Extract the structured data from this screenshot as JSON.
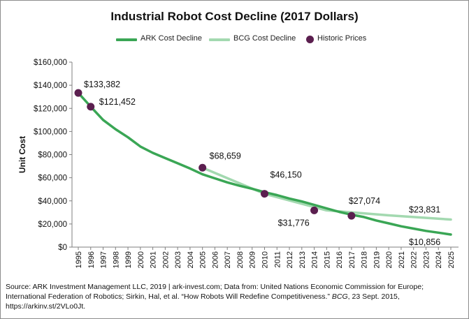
{
  "chart_data": {
    "type": "line",
    "title": "Industrial Robot Cost Decline (2017 Dollars)",
    "xlabel": "",
    "ylabel": "Unit Cost",
    "x": [
      1995,
      1996,
      1997,
      1998,
      1999,
      2000,
      2001,
      2002,
      2003,
      2004,
      2005,
      2006,
      2007,
      2008,
      2009,
      2010,
      2011,
      2012,
      2013,
      2014,
      2015,
      2016,
      2017,
      2018,
      2019,
      2020,
      2021,
      2022,
      2023,
      2024,
      2025
    ],
    "ylim": [
      0,
      160000
    ],
    "yticks": [
      "$0",
      "$20,000",
      "$40,000",
      "$60,000",
      "$80,000",
      "$100,000",
      "$120,000",
      "$140,000",
      "$160,000"
    ],
    "ytick_values": [
      0,
      20000,
      40000,
      60000,
      80000,
      100000,
      120000,
      140000,
      160000
    ],
    "grid": false,
    "legend_position": "top",
    "series": [
      {
        "name": "ARK Cost Decline",
        "color": "#3aa655",
        "x": [
          1995,
          1996,
          1997,
          1998,
          1999,
          2000,
          2001,
          2002,
          2003,
          2004,
          2005,
          2006,
          2007,
          2008,
          2009,
          2010,
          2011,
          2012,
          2013,
          2014,
          2015,
          2016,
          2017,
          2018,
          2019,
          2020,
          2021,
          2022,
          2023,
          2024,
          2025
        ],
        "values": [
          133382,
          121452,
          110000,
          102000,
          95000,
          87000,
          81500,
          77000,
          72500,
          68000,
          63000,
          59500,
          56000,
          53000,
          50500,
          47500,
          45000,
          42000,
          39500,
          36500,
          33500,
          30500,
          28000,
          26000,
          23000,
          20500,
          18000,
          16000,
          14000,
          12500,
          10856
        ]
      },
      {
        "name": "BCG Cost Decline",
        "color": "#a3d9b0",
        "x": [
          2005,
          2010,
          2015,
          2020,
          2025
        ],
        "values": [
          68659,
          46150,
          31776,
          27500,
          23831
        ]
      },
      {
        "name": "Historic Prices",
        "color": "#5b1f4f",
        "kind": "points",
        "x": [
          1995,
          1996,
          2005,
          2010,
          2014,
          2017
        ],
        "values": [
          133382,
          121452,
          68659,
          46150,
          31776,
          27074
        ]
      }
    ],
    "annotations": [
      {
        "text": "$133,382",
        "x": 1995,
        "y": 133382,
        "dx": 8,
        "dy": -8
      },
      {
        "text": "$121,452",
        "x": 1996,
        "y": 121452,
        "dx": 12,
        "dy": -3
      },
      {
        "text": "$68,659",
        "x": 2005,
        "y": 68659,
        "dx": 10,
        "dy": -13
      },
      {
        "text": "$46,150",
        "x": 2010,
        "y": 46150,
        "dx": 8,
        "dy": -23
      },
      {
        "text": "$31,776",
        "x": 2014,
        "y": 31776,
        "dx": -52,
        "dy": 22
      },
      {
        "text": "$27,074",
        "x": 2017,
        "y": 27074,
        "dx": -4,
        "dy": -17
      },
      {
        "text": "$23,831",
        "x": 2025,
        "y": 23831,
        "dx": -60,
        "dy": -10
      },
      {
        "text": "$10,856",
        "x": 2025,
        "y": 10856,
        "dx": -60,
        "dy": 15
      }
    ]
  },
  "source_note": {
    "line1": "Source: ARK Investment Management LLC, 2019 | ark-invest.com;  Data from: United Nations Economic Commission for Europe;",
    "line2_a": "International Federation of Robotics; Sirkin, Hal, et al. “How Robots Will Redefine Competitiveness.”",
    "line2_b": "BCG",
    "line2_c": ", 23 Sept. 2015,",
    "line3": "https://arkinv.st/2VLo0Jt."
  }
}
